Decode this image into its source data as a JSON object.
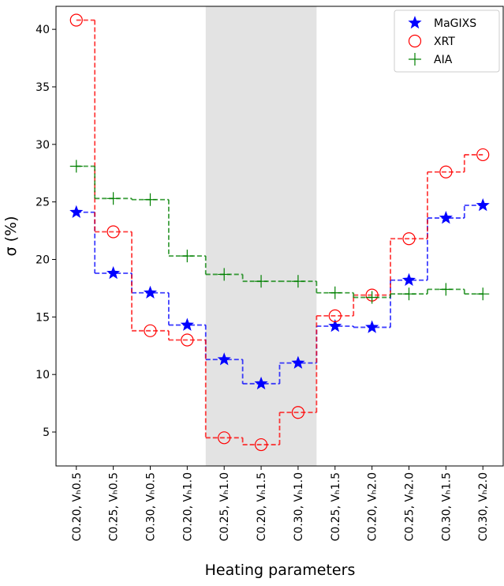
{
  "chart_data": {
    "type": "step",
    "x_label": "Heating parameters",
    "y_label": "σ (%)",
    "categories": [
      "C0.20, Vₕ0.5",
      "C0.25, Vₕ0.5",
      "C0.30, Vₕ0.5",
      "C0.20, Vₕ1.0",
      "C0.25, Vₕ1.0",
      "C0.20, Vₕ1.5",
      "C0.30, Vₕ1.0",
      "C0.25, Vₕ1.5",
      "C0.20, Vₕ2.0",
      "C0.25, Vₕ2.0",
      "C0.30, Vₕ1.5",
      "C0.30, Vₕ2.0"
    ],
    "series": [
      {
        "name": "MaGIXS",
        "color": "#0000ff",
        "marker": "star",
        "values": [
          24.1,
          18.8,
          17.1,
          14.3,
          11.3,
          9.2,
          11.0,
          14.2,
          14.1,
          18.2,
          23.6,
          24.7
        ]
      },
      {
        "name": "XRT",
        "color": "#ff0000",
        "marker": "circle",
        "values": [
          40.8,
          22.4,
          13.8,
          13.0,
          4.5,
          3.9,
          6.7,
          15.1,
          16.9,
          21.8,
          27.6,
          29.1
        ]
      },
      {
        "name": "AIA",
        "color": "#008000",
        "marker": "plus",
        "values": [
          28.1,
          25.3,
          25.2,
          20.3,
          18.7,
          18.1,
          18.1,
          17.1,
          16.7,
          17.0,
          17.4,
          17.0
        ]
      }
    ],
    "xlim": [
      -0.55,
      11.55
    ],
    "ylim": [
      2.05,
      42.0
    ],
    "yticks": [
      5,
      10,
      15,
      20,
      25,
      30,
      35,
      40
    ],
    "highlight": {
      "from": 3.5,
      "to": 6.5,
      "color": "#e3e3e3"
    },
    "grid": false,
    "legend": "upper right"
  }
}
